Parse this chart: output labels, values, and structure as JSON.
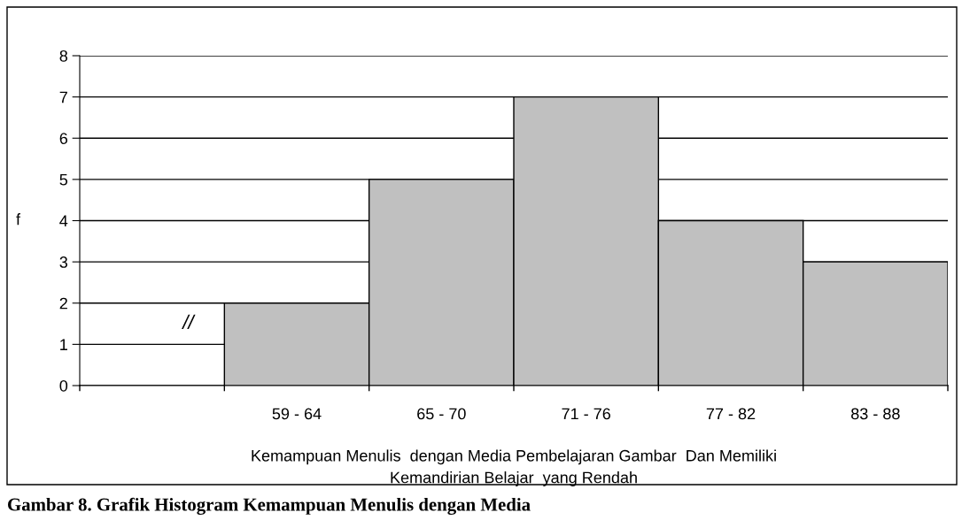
{
  "chart_data": {
    "type": "bar",
    "categories": [
      null,
      "59 - 64",
      "65 - 70",
      "71 - 76",
      "77 - 82",
      "83 - 88"
    ],
    "values": [
      null,
      2,
      5,
      7,
      4,
      3
    ],
    "color": "#c0c0c0",
    "ylabel": "f",
    "xlabel": "Kemampuan Menulis  dengan Media Pembelajaran Gambar  Dan Memiliki\nKemandirian Belajar  yang Rendah",
    "ylim": [
      0,
      8
    ],
    "yticks": [
      0,
      1,
      2,
      3,
      4,
      5,
      6,
      7,
      8
    ],
    "grid": "y",
    "annotations": [
      "//",
      "Gambar 8. Grafik Histogram Kemampuan Menulis dengan Media"
    ]
  }
}
